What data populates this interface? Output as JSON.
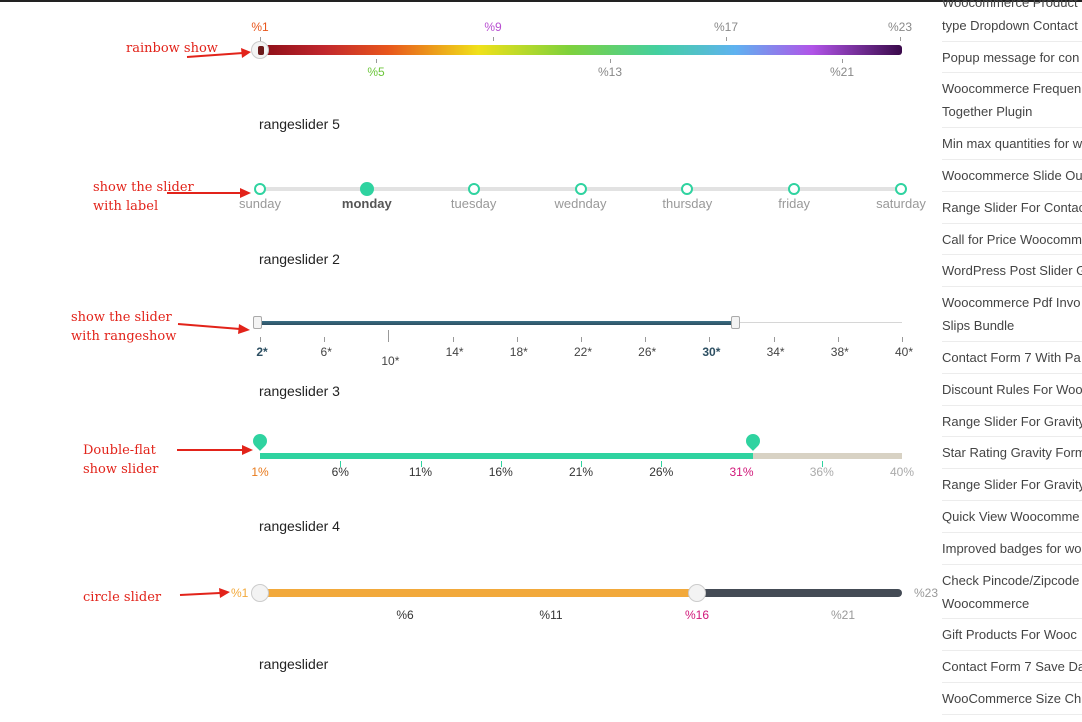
{
  "annotations": {
    "rainbow": "rainbow show",
    "label_line1": "show the slider",
    "label_line2": "with label",
    "rangeshow_line1": "show the slider",
    "rangeshow_line2": "with rangeshow",
    "double_line1": "Double-flat",
    "double_line2": "show slider",
    "circle": "circle slider"
  },
  "headings": {
    "h5": "rangeslider 5",
    "h2": "rangeslider 2",
    "h3": "rangeslider 3",
    "h4": "rangeslider 4",
    "h0": "rangeslider"
  },
  "rainbow_slider": {
    "top_labels": [
      "%1",
      "%9",
      "%17",
      "%23"
    ],
    "bottom_labels": [
      "%5",
      "%13",
      "%21"
    ],
    "colors": {
      "%1": "#e8561c",
      "%9": "#b84fd1",
      "%17": "#888888",
      "%23": "#888888",
      "%5": "#6cc63b",
      "%13": "#888888",
      "%21": "#888888"
    },
    "value": "%1"
  },
  "day_slider": {
    "days": [
      "sunday",
      "monday",
      "tuesday",
      "wednday",
      "thursday",
      "friday",
      "saturday"
    ],
    "selected": "monday",
    "accent": "#2fd3a0"
  },
  "range_slider": {
    "labels": [
      "2*",
      "6*",
      "10*",
      "14*",
      "18*",
      "22*",
      "26*",
      "30*",
      "34*",
      "38*",
      "40*"
    ],
    "from": "2*",
    "to": "30*"
  },
  "flat_slider": {
    "labels": [
      "1%",
      "6%",
      "11%",
      "16%",
      "21%",
      "26%",
      "31%",
      "36%",
      "40%"
    ],
    "from": "1%",
    "to": "31%",
    "accent": "#2fd3a0"
  },
  "circle_slider": {
    "min_label": "%1",
    "max_label": "%23",
    "labels": [
      "%6",
      "%11",
      "%16",
      "%21"
    ],
    "value": "%16",
    "colors": {
      "fill": "#f2a93b",
      "rest": "#444b55",
      "value": "#d1187a"
    }
  },
  "sidebar": {
    "items": [
      "Woocommerce Product",
      "type Dropdown Contact",
      "Popup message for con",
      "Woocommerce Frequen",
      "Together Plugin",
      "Min max quantities for w",
      "Woocommerce Slide Ou",
      "Range Slider For Contac",
      "Call for Price Woocomm",
      "WordPress Post Slider G",
      "Woocommerce Pdf Invo",
      "Slips Bundle",
      "Contact Form 7 With Pa",
      "Discount Rules For Woo",
      "Range Slider For Gravity",
      "Star Rating Gravity Form",
      "Range Slider For Gravity",
      "Quick View Woocomme",
      "Improved badges for wo",
      "Check Pincode/Zipcode",
      "Woocommerce",
      "Gift Products For Wooc",
      "Contact Form 7 Save Da",
      "WooCommerce Size Ch"
    ]
  }
}
